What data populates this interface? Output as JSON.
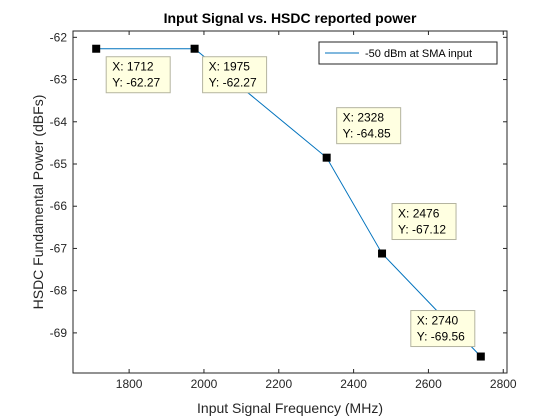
{
  "chart_data": {
    "type": "line",
    "title": "Input Signal vs. HSDC reported power",
    "xlabel": "Input Signal Frequency (MHz)",
    "ylabel": "HSDC Fundamental Power (dBFs)",
    "xlim": [
      1650,
      2810
    ],
    "ylim": [
      -69.95,
      -61.85
    ],
    "xticks": [
      1800,
      2000,
      2200,
      2400,
      2600,
      2800
    ],
    "yticks": [
      -62,
      -63,
      -64,
      -65,
      -66,
      -67,
      -68,
      -69
    ],
    "grid": false,
    "legend_position": "top-right",
    "series": [
      {
        "name": "-50 dBm at SMA input",
        "color": "#0072bd",
        "x": [
          1712,
          1975,
          2328,
          2476,
          2740
        ],
        "y": [
          -62.27,
          -62.27,
          -64.85,
          -67.12,
          -69.56
        ]
      }
    ],
    "annotations": [
      {
        "x_label": "X: 1712",
        "y_label": "Y: -62.27"
      },
      {
        "x_label": "X: 1975",
        "y_label": "Y: -62.27"
      },
      {
        "x_label": "X: 2328",
        "y_label": "Y: -64.85"
      },
      {
        "x_label": "X: 2476",
        "y_label": "Y: -67.12"
      },
      {
        "x_label": "X: 2740",
        "y_label": "Y: -69.56"
      }
    ]
  }
}
